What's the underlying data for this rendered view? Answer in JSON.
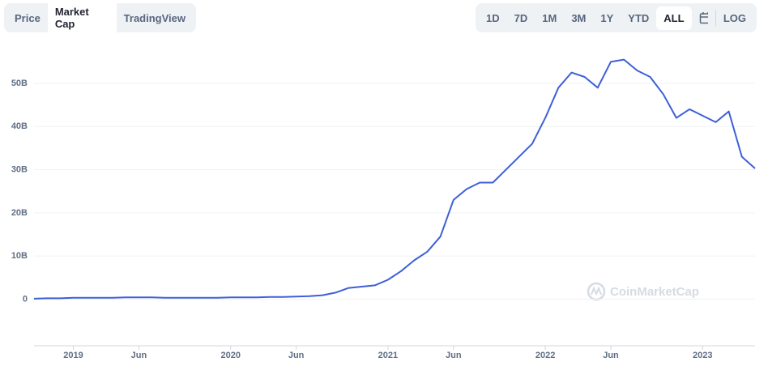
{
  "tabs": [
    "Price",
    "Market Cap",
    "TradingView"
  ],
  "ranges": [
    "1D",
    "7D",
    "1M",
    "3M",
    "1Y",
    "YTD",
    "ALL"
  ],
  "log_button": "LOG",
  "watermark": "CoinMarketCap",
  "chart_data": {
    "type": "line",
    "x": [
      "2018-10",
      "2018-11",
      "2018-12",
      "2019-01",
      "2019-02",
      "2019-03",
      "2019-04",
      "2019-05",
      "2019-06",
      "2019-07",
      "2019-08",
      "2019-09",
      "2019-10",
      "2019-11",
      "2019-12",
      "2020-01",
      "2020-02",
      "2020-03",
      "2020-04",
      "2020-05",
      "2020-06",
      "2020-07",
      "2020-08",
      "2020-09",
      "2020-10",
      "2020-11",
      "2020-12",
      "2021-01",
      "2021-02",
      "2021-03",
      "2021-04",
      "2021-05",
      "2021-06",
      "2021-07",
      "2021-08",
      "2021-09",
      "2021-10",
      "2021-11",
      "2021-12",
      "2022-01",
      "2022-02",
      "2022-03",
      "2022-04",
      "2022-05",
      "2022-06",
      "2022-07",
      "2022-08",
      "2022-09",
      "2022-10",
      "2022-11",
      "2022-12",
      "2023-01",
      "2023-02",
      "2023-03",
      "2023-04",
      "2023-05"
    ],
    "series": [
      {
        "name": "Market Cap",
        "color": "#3d5fd9",
        "values": [
          0.1,
          0.2,
          0.2,
          0.3,
          0.3,
          0.3,
          0.3,
          0.4,
          0.4,
          0.4,
          0.3,
          0.3,
          0.3,
          0.3,
          0.3,
          0.4,
          0.4,
          0.4,
          0.5,
          0.5,
          0.6,
          0.7,
          0.9,
          1.5,
          2.6,
          2.9,
          3.2,
          4.5,
          6.5,
          9,
          11,
          14.5,
          23,
          25.5,
          27,
          27,
          30,
          33,
          36,
          42,
          49,
          52.5,
          51.5,
          49,
          55,
          55.5,
          53,
          51.5,
          47.5,
          42,
          44,
          42.5,
          41,
          43.5,
          33,
          30.3
        ]
      }
    ],
    "xlim": [
      "2018-10",
      "2023-05"
    ],
    "xticks": [
      {
        "value": "2019-01",
        "label": "2019"
      },
      {
        "value": "2019-06",
        "label": "Jun"
      },
      {
        "value": "2020-01",
        "label": "2020"
      },
      {
        "value": "2020-06",
        "label": "Jun"
      },
      {
        "value": "2021-01",
        "label": "2021"
      },
      {
        "value": "2021-06",
        "label": "Jun"
      },
      {
        "value": "2022-01",
        "label": "2022"
      },
      {
        "value": "2022-06",
        "label": "Jun"
      },
      {
        "value": "2023-01",
        "label": "2023"
      }
    ],
    "ylim": [
      -10.8,
      60.5
    ],
    "yticks": [
      0,
      {
        "value": 10,
        "label": "10B"
      },
      {
        "value": 20,
        "label": "20B"
      },
      {
        "value": 30,
        "label": "30B"
      },
      {
        "value": 40,
        "label": "40B"
      },
      {
        "value": 50,
        "label": "50B"
      }
    ],
    "grid": true
  }
}
